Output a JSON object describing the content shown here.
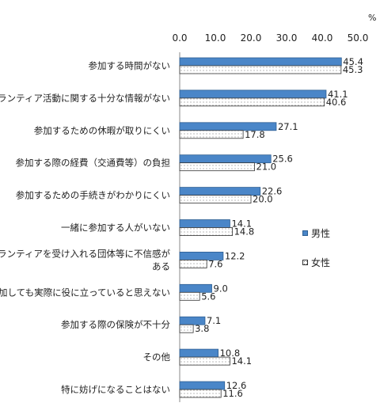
{
  "chart_data": {
    "type": "bar",
    "orientation": "horizontal",
    "unit": "%",
    "xlim": [
      0,
      50
    ],
    "xticks": [
      "0.0",
      "10.0",
      "20.0",
      "30.0",
      "40.0",
      "50.0"
    ],
    "categories": [
      [
        "参加する時間がない"
      ],
      [
        "ボランティア活動に関する十分な情報がない"
      ],
      [
        "参加するための休暇が取りにくい"
      ],
      [
        "参加する際の経費（交通費等）の負担"
      ],
      [
        "参加するための手続きがわかりにくい"
      ],
      [
        "一緒に参加する人がいない"
      ],
      [
        "ボランティアを受け入れる団体等に不信感が",
        "ある"
      ],
      [
        "参加しても実際に役に立っていると思えない"
      ],
      [
        "参加する際の保険が不十分"
      ],
      [
        "その他"
      ],
      [
        "特に妨げになることはない"
      ]
    ],
    "series": [
      {
        "name": "男性",
        "color": "#4a86c8",
        "values": [
          45.4,
          41.1,
          27.1,
          25.6,
          22.6,
          14.1,
          12.2,
          9.0,
          7.1,
          10.8,
          12.6
        ],
        "labels": [
          "45.4",
          "41.1",
          "27.1",
          "25.6",
          "22.6",
          "14.1",
          "12.2",
          "9.0",
          "7.1",
          "10.8",
          "12.6"
        ]
      },
      {
        "name": "女性",
        "color": "#ffffff",
        "values": [
          45.3,
          40.6,
          17.8,
          21.0,
          20.0,
          14.8,
          7.6,
          5.6,
          3.8,
          14.1,
          11.6
        ],
        "labels": [
          "45.3",
          "40.6",
          "17.8",
          "21.0",
          "20.0",
          "14.8",
          "7.6",
          "5.6",
          "3.8",
          "14.1",
          "11.6"
        ]
      }
    ],
    "legend_position": "right"
  }
}
